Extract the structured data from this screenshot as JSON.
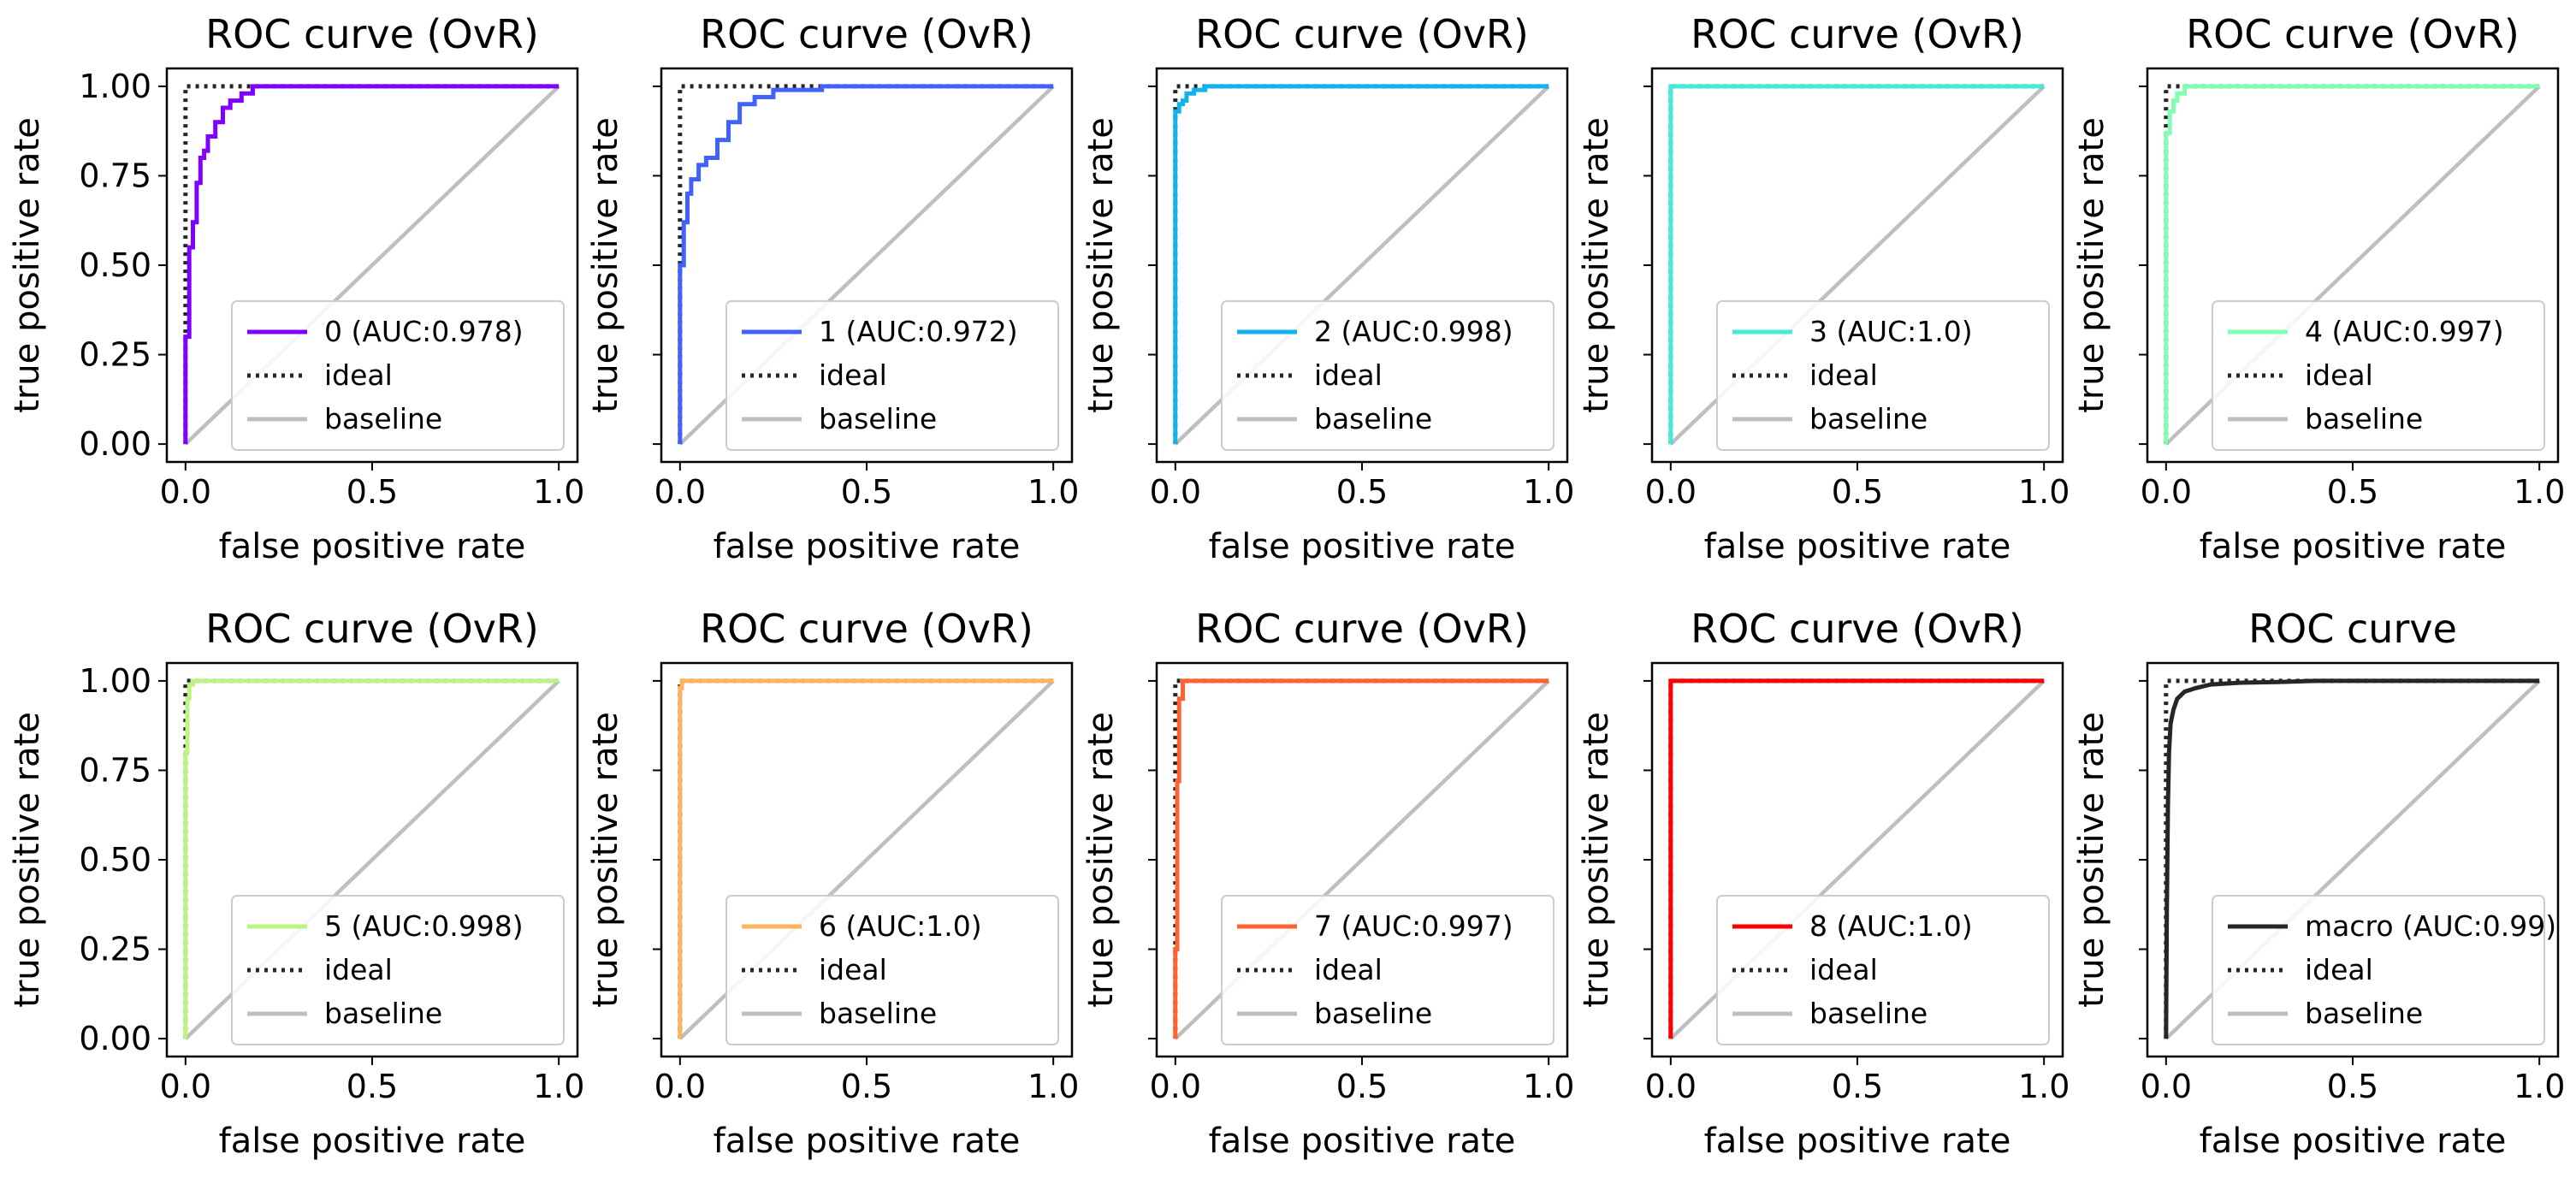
{
  "colors": {
    "ideal": "#262626",
    "baseline": "#bfbfbf",
    "axes": "#000000"
  },
  "chart_data": [
    {
      "type": "line",
      "title": "ROC curve (OvR)",
      "xlabel": "false positive rate",
      "ylabel": "true positive rate",
      "xlim": [
        -0.05,
        1.05
      ],
      "ylim": [
        -0.05,
        1.05
      ],
      "x_ticks": [
        "0.0",
        "0.5",
        "1.0"
      ],
      "y_ticks": [
        "0.00",
        "0.25",
        "0.50",
        "0.75",
        "1.00"
      ],
      "show_y_tick_labels": true,
      "grid": false,
      "legend_position": "lower right",
      "series": [
        {
          "name": "0 (AUC:0.978)",
          "color": "#8000ff",
          "style": "solid",
          "x": [
            0,
            0,
            0.01,
            0.01,
            0.02,
            0.02,
            0.03,
            0.03,
            0.04,
            0.04,
            0.05,
            0.05,
            0.06,
            0.06,
            0.08,
            0.08,
            0.1,
            0.1,
            0.12,
            0.12,
            0.15,
            0.15,
            0.18,
            0.18,
            1.0
          ],
          "y": [
            0,
            0.3,
            0.3,
            0.55,
            0.55,
            0.62,
            0.62,
            0.73,
            0.73,
            0.8,
            0.8,
            0.82,
            0.82,
            0.86,
            0.86,
            0.9,
            0.9,
            0.94,
            0.94,
            0.96,
            0.96,
            0.98,
            0.98,
            1.0,
            1.0
          ]
        },
        {
          "name": "ideal",
          "color": "#262626",
          "style": "dotted",
          "x": [
            0,
            0,
            1
          ],
          "y": [
            0,
            1,
            1
          ]
        },
        {
          "name": "baseline",
          "color": "#bfbfbf",
          "style": "solid",
          "x": [
            0,
            1
          ],
          "y": [
            0,
            1
          ]
        }
      ]
    },
    {
      "type": "line",
      "title": "ROC curve (OvR)",
      "xlabel": "false positive rate",
      "ylabel": "true positive rate",
      "xlim": [
        -0.05,
        1.05
      ],
      "ylim": [
        -0.05,
        1.05
      ],
      "x_ticks": [
        "0.0",
        "0.5",
        "1.0"
      ],
      "y_ticks": [
        "0.00",
        "0.25",
        "0.50",
        "0.75",
        "1.00"
      ],
      "show_y_tick_labels": false,
      "grid": false,
      "legend_position": "lower right",
      "series": [
        {
          "name": "1 (AUC:0.972)",
          "color": "#4062fa",
          "style": "solid",
          "x": [
            0,
            0,
            0.01,
            0.01,
            0.02,
            0.02,
            0.03,
            0.03,
            0.05,
            0.05,
            0.07,
            0.07,
            0.1,
            0.1,
            0.13,
            0.13,
            0.16,
            0.16,
            0.2,
            0.2,
            0.25,
            0.25,
            0.38,
            0.38,
            1.0
          ],
          "y": [
            0,
            0.5,
            0.5,
            0.62,
            0.62,
            0.7,
            0.7,
            0.74,
            0.74,
            0.78,
            0.78,
            0.8,
            0.8,
            0.85,
            0.85,
            0.9,
            0.9,
            0.95,
            0.95,
            0.97,
            0.97,
            0.99,
            0.99,
            1.0,
            1.0
          ]
        },
        {
          "name": "ideal",
          "color": "#262626",
          "style": "dotted",
          "x": [
            0,
            0,
            1
          ],
          "y": [
            0,
            1,
            1
          ]
        },
        {
          "name": "baseline",
          "color": "#bfbfbf",
          "style": "solid",
          "x": [
            0,
            1
          ],
          "y": [
            0,
            1
          ]
        }
      ]
    },
    {
      "type": "line",
      "title": "ROC curve (OvR)",
      "xlabel": "false positive rate",
      "ylabel": "true positive rate",
      "xlim": [
        -0.05,
        1.05
      ],
      "ylim": [
        -0.05,
        1.05
      ],
      "x_ticks": [
        "0.0",
        "0.5",
        "1.0"
      ],
      "y_ticks": [
        "0.00",
        "0.25",
        "0.50",
        "0.75",
        "1.00"
      ],
      "show_y_tick_labels": false,
      "grid": false,
      "legend_position": "lower right",
      "series": [
        {
          "name": "2 (AUC:0.998)",
          "color": "#12b3eb",
          "style": "solid",
          "x": [
            0,
            0,
            0.01,
            0.01,
            0.02,
            0.02,
            0.03,
            0.03,
            0.05,
            0.05,
            0.08,
            0.08,
            1.0
          ],
          "y": [
            0,
            0.93,
            0.93,
            0.95,
            0.95,
            0.96,
            0.96,
            0.98,
            0.98,
            0.99,
            0.99,
            1.0,
            1.0
          ]
        },
        {
          "name": "ideal",
          "color": "#262626",
          "style": "dotted",
          "x": [
            0,
            0,
            1
          ],
          "y": [
            0,
            1,
            1
          ]
        },
        {
          "name": "baseline",
          "color": "#bfbfbf",
          "style": "solid",
          "x": [
            0,
            1
          ],
          "y": [
            0,
            1
          ]
        }
      ]
    },
    {
      "type": "line",
      "title": "ROC curve (OvR)",
      "xlabel": "false positive rate",
      "ylabel": "true positive rate",
      "xlim": [
        -0.05,
        1.05
      ],
      "ylim": [
        -0.05,
        1.05
      ],
      "x_ticks": [
        "0.0",
        "0.5",
        "1.0"
      ],
      "y_ticks": [
        "0.00",
        "0.25",
        "0.50",
        "0.75",
        "1.00"
      ],
      "show_y_tick_labels": false,
      "grid": false,
      "legend_position": "lower right",
      "series": [
        {
          "name": "3 (AUC:1.0)",
          "color": "#44ecd5",
          "style": "solid",
          "x": [
            0,
            0,
            1.0
          ],
          "y": [
            0,
            1.0,
            1.0
          ]
        },
        {
          "name": "ideal",
          "color": "#262626",
          "style": "dotted",
          "x": [
            0,
            0,
            1
          ],
          "y": [
            0,
            1,
            1
          ]
        },
        {
          "name": "baseline",
          "color": "#bfbfbf",
          "style": "solid",
          "x": [
            0,
            1
          ],
          "y": [
            0,
            1
          ]
        }
      ]
    },
    {
      "type": "line",
      "title": "ROC curve (OvR)",
      "xlabel": "false positive rate",
      "ylabel": "true positive rate",
      "xlim": [
        -0.05,
        1.05
      ],
      "ylim": [
        -0.05,
        1.05
      ],
      "x_ticks": [
        "0.0",
        "0.5",
        "1.0"
      ],
      "y_ticks": [
        "0.00",
        "0.25",
        "0.50",
        "0.75",
        "1.00"
      ],
      "show_y_tick_labels": false,
      "grid": false,
      "legend_position": "lower right",
      "series": [
        {
          "name": "4 (AUC:0.997)",
          "color": "#80ffb4",
          "style": "solid",
          "x": [
            0,
            0,
            0.01,
            0.01,
            0.02,
            0.02,
            0.03,
            0.03,
            0.05,
            0.05,
            1.0
          ],
          "y": [
            0,
            0.87,
            0.87,
            0.93,
            0.93,
            0.96,
            0.96,
            0.98,
            0.98,
            1.0,
            1.0
          ]
        },
        {
          "name": "ideal",
          "color": "#262626",
          "style": "dotted",
          "x": [
            0,
            0,
            1
          ],
          "y": [
            0,
            1,
            1
          ]
        },
        {
          "name": "baseline",
          "color": "#bfbfbf",
          "style": "solid",
          "x": [
            0,
            1
          ],
          "y": [
            0,
            1
          ]
        }
      ]
    },
    {
      "type": "line",
      "title": "ROC curve (OvR)",
      "xlabel": "false positive rate",
      "ylabel": "true positive rate",
      "xlim": [
        -0.05,
        1.05
      ],
      "ylim": [
        -0.05,
        1.05
      ],
      "x_ticks": [
        "0.0",
        "0.5",
        "1.0"
      ],
      "y_ticks": [
        "0.00",
        "0.25",
        "0.50",
        "0.75",
        "1.00"
      ],
      "show_y_tick_labels": true,
      "grid": false,
      "legend_position": "lower right",
      "series": [
        {
          "name": "5 (AUC:0.998)",
          "color": "#bbf384",
          "style": "solid",
          "x": [
            0,
            0,
            0.005,
            0.005,
            0.01,
            0.01,
            0.02,
            0.02,
            1.0
          ],
          "y": [
            0,
            0.8,
            0.8,
            0.95,
            0.95,
            0.99,
            0.99,
            1.0,
            1.0
          ]
        },
        {
          "name": "ideal",
          "color": "#262626",
          "style": "dotted",
          "x": [
            0,
            0,
            1
          ],
          "y": [
            0,
            1,
            1
          ]
        },
        {
          "name": "baseline",
          "color": "#bfbfbf",
          "style": "solid",
          "x": [
            0,
            1
          ],
          "y": [
            0,
            1
          ]
        }
      ]
    },
    {
      "type": "line",
      "title": "ROC curve (OvR)",
      "xlabel": "false positive rate",
      "ylabel": "true positive rate",
      "xlim": [
        -0.05,
        1.05
      ],
      "ylim": [
        -0.05,
        1.05
      ],
      "x_ticks": [
        "0.0",
        "0.5",
        "1.0"
      ],
      "y_ticks": [
        "0.00",
        "0.25",
        "0.50",
        "0.75",
        "1.00"
      ],
      "show_y_tick_labels": false,
      "grid": false,
      "legend_position": "lower right",
      "series": [
        {
          "name": "6 (AUC:1.0)",
          "color": "#ffb360",
          "style": "solid",
          "x": [
            0,
            0,
            0.005,
            0.005,
            1.0
          ],
          "y": [
            0,
            0.98,
            0.98,
            1.0,
            1.0
          ]
        },
        {
          "name": "ideal",
          "color": "#262626",
          "style": "dotted",
          "x": [
            0,
            0,
            1
          ],
          "y": [
            0,
            1,
            1
          ]
        },
        {
          "name": "baseline",
          "color": "#bfbfbf",
          "style": "solid",
          "x": [
            0,
            1
          ],
          "y": [
            0,
            1
          ]
        }
      ]
    },
    {
      "type": "line",
      "title": "ROC curve (OvR)",
      "xlabel": "false positive rate",
      "ylabel": "true positive rate",
      "xlim": [
        -0.05,
        1.05
      ],
      "ylim": [
        -0.05,
        1.05
      ],
      "x_ticks": [
        "0.0",
        "0.5",
        "1.0"
      ],
      "y_ticks": [
        "0.00",
        "0.25",
        "0.50",
        "0.75",
        "1.00"
      ],
      "show_y_tick_labels": false,
      "grid": false,
      "legend_position": "lower right",
      "series": [
        {
          "name": "7 (AUC:0.997)",
          "color": "#ff6230",
          "style": "solid",
          "x": [
            0,
            0,
            0.005,
            0.005,
            0.01,
            0.01,
            0.02,
            0.02,
            1.0
          ],
          "y": [
            0,
            0.25,
            0.25,
            0.72,
            0.72,
            0.95,
            0.95,
            1.0,
            1.0
          ]
        },
        {
          "name": "ideal",
          "color": "#262626",
          "style": "dotted",
          "x": [
            0,
            0,
            1
          ],
          "y": [
            0,
            1,
            1
          ]
        },
        {
          "name": "baseline",
          "color": "#bfbfbf",
          "style": "solid",
          "x": [
            0,
            1
          ],
          "y": [
            0,
            1
          ]
        }
      ]
    },
    {
      "type": "line",
      "title": "ROC curve (OvR)",
      "xlabel": "false positive rate",
      "ylabel": "true positive rate",
      "xlim": [
        -0.05,
        1.05
      ],
      "ylim": [
        -0.05,
        1.05
      ],
      "x_ticks": [
        "0.0",
        "0.5",
        "1.0"
      ],
      "y_ticks": [
        "0.00",
        "0.25",
        "0.50",
        "0.75",
        "1.00"
      ],
      "show_y_tick_labels": false,
      "grid": false,
      "legend_position": "lower right",
      "series": [
        {
          "name": "8 (AUC:1.0)",
          "color": "#ff0000",
          "style": "solid",
          "x": [
            0,
            0,
            1.0
          ],
          "y": [
            0,
            1.0,
            1.0
          ]
        },
        {
          "name": "ideal",
          "color": "#262626",
          "style": "dotted",
          "x": [
            0,
            0,
            1
          ],
          "y": [
            0,
            1,
            1
          ]
        },
        {
          "name": "baseline",
          "color": "#bfbfbf",
          "style": "solid",
          "x": [
            0,
            1
          ],
          "y": [
            0,
            1
          ]
        }
      ]
    },
    {
      "type": "line",
      "title": "ROC curve",
      "xlabel": "false positive rate",
      "ylabel": "true positive rate",
      "xlim": [
        -0.05,
        1.05
      ],
      "ylim": [
        -0.05,
        1.05
      ],
      "x_ticks": [
        "0.0",
        "0.5",
        "1.0"
      ],
      "y_ticks": [
        "0.00",
        "0.25",
        "0.50",
        "0.75",
        "1.00"
      ],
      "show_y_tick_labels": false,
      "grid": false,
      "legend_position": "lower right",
      "series": [
        {
          "name": "macro (AUC:0.99)",
          "color": "#262626",
          "style": "solid",
          "x": [
            0,
            0.002,
            0.005,
            0.008,
            0.012,
            0.02,
            0.03,
            0.05,
            0.08,
            0.12,
            0.2,
            0.3,
            0.4,
            1.0
          ],
          "y": [
            0,
            0.35,
            0.65,
            0.8,
            0.88,
            0.92,
            0.95,
            0.97,
            0.98,
            0.99,
            0.995,
            0.997,
            1.0,
            1.0
          ]
        },
        {
          "name": "ideal",
          "color": "#262626",
          "style": "dotted",
          "x": [
            0,
            0,
            1
          ],
          "y": [
            0,
            1,
            1
          ]
        },
        {
          "name": "baseline",
          "color": "#bfbfbf",
          "style": "solid",
          "x": [
            0,
            1
          ],
          "y": [
            0,
            1
          ]
        }
      ]
    }
  ]
}
